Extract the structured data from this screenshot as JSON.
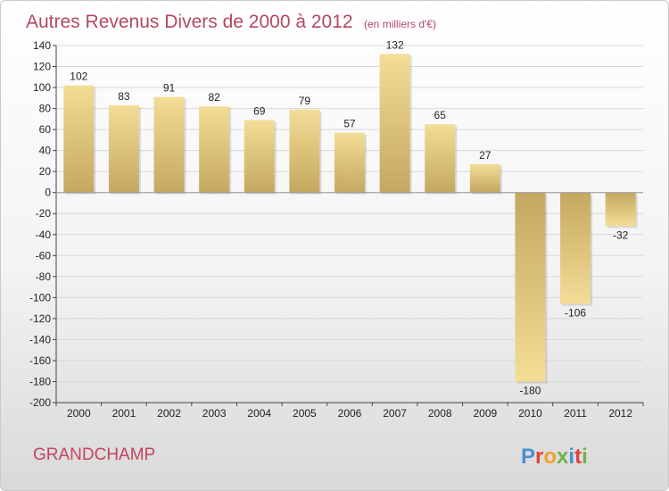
{
  "title": "Autres Revenus Divers de 2000 à 2012",
  "unit": "(en milliers d'€)",
  "town": "GRANDCHAMP",
  "logo": {
    "text": "Proxiti",
    "letter_colors": [
      "#4b8ed1",
      "#e0413a",
      "#f0a12b",
      "#6fb24a",
      "#4b8ed1",
      "#e0413a",
      "#6fb24a"
    ]
  },
  "colors": {
    "bar_light": "#f3dd97",
    "bar_dark": "#c4a860",
    "grid": "#d8d8d8",
    "axis": "#444444"
  },
  "chart_data": {
    "type": "bar",
    "title": "Autres Revenus Divers de 2000 à 2012",
    "xlabel": "",
    "ylabel": "",
    "ylim": [
      -200,
      140
    ],
    "ytick_step": 20,
    "grid": true,
    "categories": [
      "2000",
      "2001",
      "2002",
      "2003",
      "2004",
      "2005",
      "2006",
      "2007",
      "2008",
      "2009",
      "2010",
      "2011",
      "2012"
    ],
    "values": [
      102,
      83,
      91,
      82,
      69,
      79,
      57,
      132,
      65,
      27,
      -180,
      -106,
      -32
    ]
  }
}
